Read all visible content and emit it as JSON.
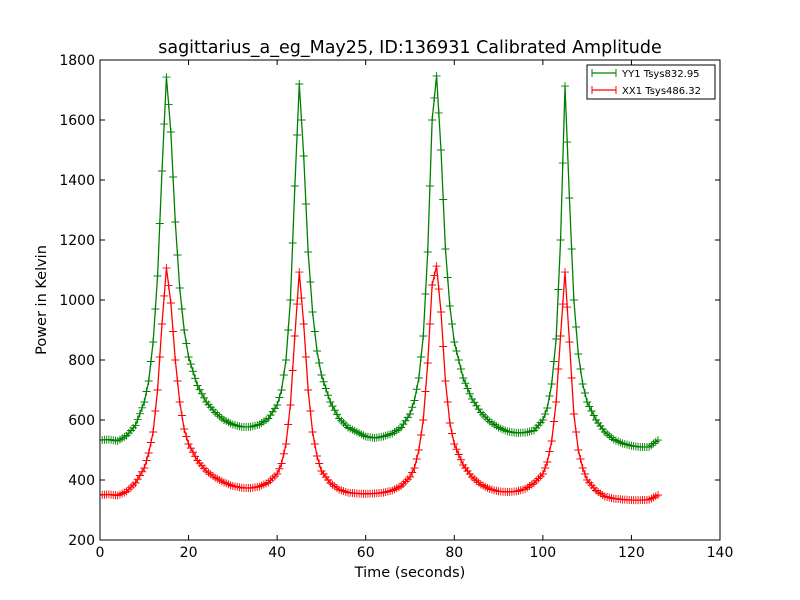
{
  "chart_data": {
    "type": "line",
    "title": "sagittarius_a_eg_May25, ID:136931 Calibrated Amplitude",
    "xlabel": "Time (seconds)",
    "ylabel": "Power in Kelvin",
    "xlim": [
      0,
      140
    ],
    "ylim": [
      200,
      1800
    ],
    "xticks": [
      "0",
      "20",
      "40",
      "60",
      "80",
      "100",
      "120",
      "140"
    ],
    "yticks": [
      "200",
      "400",
      "600",
      "800",
      "1000",
      "1200",
      "1400",
      "1600",
      "1800"
    ],
    "grid": false,
    "legend_position": "top-right",
    "marker": "+",
    "x": [
      0,
      2,
      4,
      6,
      8,
      10,
      11,
      12,
      13,
      14,
      15,
      16,
      17,
      18,
      19,
      20,
      22,
      24,
      26,
      28,
      30,
      32,
      34,
      36,
      38,
      40,
      41,
      42,
      43,
      44,
      45,
      46,
      47,
      48,
      49,
      50,
      52,
      54,
      56,
      58,
      60,
      62,
      64,
      66,
      68,
      70,
      71,
      72,
      73,
      74,
      75,
      76,
      77,
      78,
      79,
      80,
      82,
      84,
      86,
      88,
      90,
      92,
      94,
      96,
      98,
      100,
      101,
      102,
      103,
      104,
      105,
      106,
      107,
      108,
      109,
      110,
      112,
      114,
      116,
      118,
      120,
      122,
      124,
      125,
      126
    ],
    "series": [
      {
        "name": "YY1 Tsys832.95",
        "color": "#008000",
        "values": [
          533,
          535,
          530,
          548,
          582,
          660,
          730,
          860,
          1080,
          1430,
          1743,
          1560,
          1260,
          1040,
          900,
          810,
          715,
          660,
          625,
          600,
          585,
          577,
          577,
          585,
          605,
          650,
          700,
          800,
          1000,
          1380,
          1720,
          1480,
          1160,
          960,
          830,
          750,
          660,
          605,
          575,
          560,
          545,
          540,
          545,
          555,
          575,
          620,
          665,
          740,
          880,
          1160,
          1600,
          1747,
          1500,
          1170,
          980,
          860,
          740,
          670,
          625,
          595,
          575,
          562,
          557,
          558,
          565,
          600,
          640,
          720,
          870,
          1200,
          1713,
          1340,
          1000,
          820,
          720,
          660,
          600,
          560,
          535,
          522,
          514,
          510,
          510,
          522,
          533
        ]
      },
      {
        "name": "XX1 Tsys486.32",
        "color": "#ff0000",
        "values": [
          350,
          352,
          348,
          362,
          390,
          440,
          490,
          560,
          700,
          920,
          1107,
          990,
          800,
          660,
          570,
          520,
          465,
          430,
          408,
          392,
          380,
          374,
          373,
          378,
          392,
          420,
          455,
          520,
          650,
          880,
          1093,
          920,
          700,
          560,
          480,
          430,
          390,
          368,
          358,
          355,
          354,
          355,
          358,
          365,
          380,
          410,
          440,
          500,
          600,
          790,
          1050,
          1113,
          960,
          730,
          590,
          520,
          450,
          410,
          385,
          370,
          362,
          360,
          362,
          370,
          390,
          420,
          460,
          530,
          660,
          880,
          1093,
          860,
          620,
          500,
          440,
          400,
          365,
          345,
          338,
          335,
          333,
          333,
          334,
          342,
          350
        ]
      }
    ]
  }
}
